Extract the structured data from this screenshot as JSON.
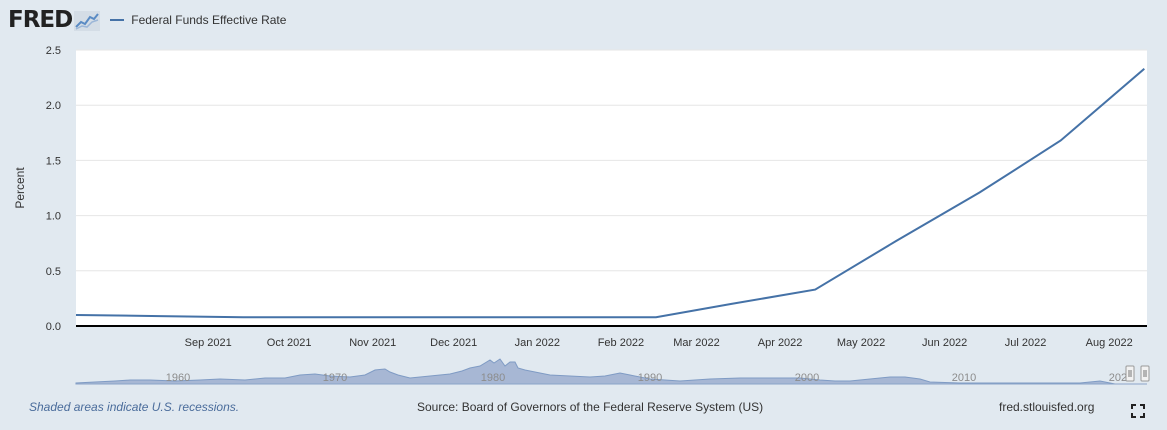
{
  "header": {
    "logo_text": "FRED",
    "legend_label": "Federal Funds Effective Rate"
  },
  "footer": {
    "note": "Shaded areas indicate U.S. recessions.",
    "source": "Source: Board of Governors of the Federal Reserve System (US)",
    "site": "fred.stlouisfed.org"
  },
  "icons": {
    "logo": "fred-graph-icon",
    "fullscreen": "fullscreen-icon"
  },
  "colors": {
    "series": "#4572a7",
    "navigator_fill": "#a7b7d4",
    "background": "#e1e9f0"
  },
  "chart_data": {
    "type": "line",
    "title": "",
    "ylabel": "Percent",
    "xlabel": "",
    "ylim": [
      0,
      2.5
    ],
    "yticks": [
      "0.0",
      "0.5",
      "1.0",
      "1.5",
      "2.0",
      "2.5"
    ],
    "x_range": [
      "2021-07-14",
      "2022-08-15"
    ],
    "xticks": [
      {
        "label": "Sep 2021",
        "date": "2021-09-01"
      },
      {
        "label": "Oct 2021",
        "date": "2021-10-01"
      },
      {
        "label": "Nov 2021",
        "date": "2021-11-01"
      },
      {
        "label": "Dec 2021",
        "date": "2021-12-01"
      },
      {
        "label": "Jan 2022",
        "date": "2022-01-01"
      },
      {
        "label": "Feb 2022",
        "date": "2022-02-01"
      },
      {
        "label": "Mar 2022",
        "date": "2022-03-01"
      },
      {
        "label": "Apr 2022",
        "date": "2022-04-01"
      },
      {
        "label": "May 2022",
        "date": "2022-05-01"
      },
      {
        "label": "Jun 2022",
        "date": "2022-06-01"
      },
      {
        "label": "Jul 2022",
        "date": "2022-07-01"
      },
      {
        "label": "Aug 2022",
        "date": "2022-08-01"
      }
    ],
    "series": [
      {
        "name": "Federal Funds Effective Rate",
        "x": [
          "2021-07-14",
          "2021-08-14",
          "2021-09-14",
          "2021-10-14",
          "2021-11-14",
          "2021-12-14",
          "2022-01-14",
          "2022-02-14",
          "2022-03-14",
          "2022-04-14",
          "2022-05-14",
          "2022-06-14",
          "2022-07-14",
          "2022-08-14"
        ],
        "y": [
          0.1,
          0.09,
          0.08,
          0.08,
          0.08,
          0.08,
          0.08,
          0.08,
          0.2,
          0.33,
          0.77,
          1.21,
          1.68,
          2.33
        ]
      }
    ],
    "navigator": {
      "labels": [
        "1960",
        "1970",
        "1980",
        "1990",
        "2000",
        "2010",
        "2020"
      ]
    },
    "grid": true,
    "legend": "top-left"
  }
}
